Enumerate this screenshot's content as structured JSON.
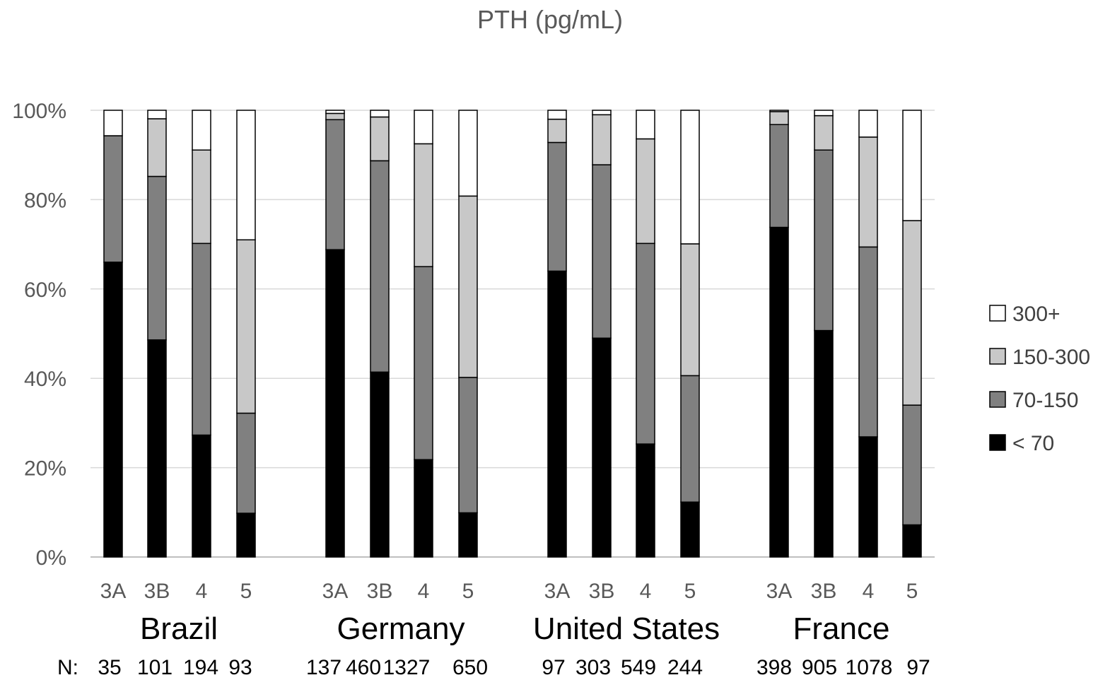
{
  "chart_data": {
    "type": "bar",
    "stacked": true,
    "percent": true,
    "title": "PTH (pg/mL)",
    "y_ticks": [
      "0%",
      "20%",
      "40%",
      "60%",
      "80%",
      "100%"
    ],
    "ylim": [
      0,
      100
    ],
    "grid": true,
    "legend_position": "right",
    "legend_order": [
      "300+",
      "150-300",
      "70-150",
      "< 70"
    ],
    "n_label": "N:",
    "groups": [
      {
        "name": "Brazil",
        "categories": [
          "3A",
          "3B",
          "4",
          "5"
        ],
        "n": [
          "35",
          "101",
          "194",
          "93"
        ],
        "series": [
          {
            "name": "< 70",
            "values": [
              66,
              48.6,
              27.3,
              9.8
            ]
          },
          {
            "name": "70-150",
            "values": [
              28.3,
              36.6,
              42.9,
              22.4
            ]
          },
          {
            "name": "150-300",
            "values": [
              0,
              12.9,
              20.9,
              38.8
            ]
          },
          {
            "name": "300+",
            "values": [
              5.7,
              1.9,
              8.9,
              29
            ]
          }
        ]
      },
      {
        "name": "Germany",
        "categories": [
          "3A",
          "3B",
          "4",
          "5"
        ],
        "n": [
          "137",
          "460",
          "1327",
          "650"
        ],
        "series": [
          {
            "name": "< 70",
            "values": [
              68.8,
              41.4,
              21.8,
              9.9
            ]
          },
          {
            "name": "70-150",
            "values": [
              29.1,
              47.3,
              43.2,
              30.3
            ]
          },
          {
            "name": "150-300",
            "values": [
              1.4,
              9.8,
              27.5,
              40.6
            ]
          },
          {
            "name": "300+",
            "values": [
              0.7,
              1.5,
              7.5,
              19.2
            ]
          }
        ]
      },
      {
        "name": "United States",
        "categories": [
          "3A",
          "3B",
          "4",
          "5"
        ],
        "n": [
          "97",
          "303",
          "549",
          "244"
        ],
        "series": [
          {
            "name": "< 70",
            "values": [
              64,
              49,
              25.3,
              12.3
            ]
          },
          {
            "name": "70-150",
            "values": [
              28.8,
              38.8,
              44.9,
              28.3
            ]
          },
          {
            "name": "150-300",
            "values": [
              5.2,
              11.2,
              23.4,
              29.5
            ]
          },
          {
            "name": "300+",
            "values": [
              2,
              1,
              6.4,
              29.9
            ]
          }
        ]
      },
      {
        "name": "France",
        "categories": [
          "3A",
          "3B",
          "4",
          "5"
        ],
        "n": [
          "398",
          "905",
          "1078",
          "97"
        ],
        "series": [
          {
            "name": "< 70",
            "values": [
              73.8,
              50.7,
              26.9,
              7.2
            ]
          },
          {
            "name": "70-150",
            "values": [
              23,
              40.4,
              42.5,
              26.8
            ]
          },
          {
            "name": "150-300",
            "values": [
              2.9,
              7.7,
              24.6,
              41.3
            ]
          },
          {
            "name": "300+",
            "values": [
              0.3,
              1.2,
              6,
              24.7
            ]
          }
        ]
      }
    ],
    "colors": {
      "< 70": "#000000",
      "70-150": "#808080",
      "150-300": "#c8c8c8",
      "300+": "#ffffff"
    }
  }
}
